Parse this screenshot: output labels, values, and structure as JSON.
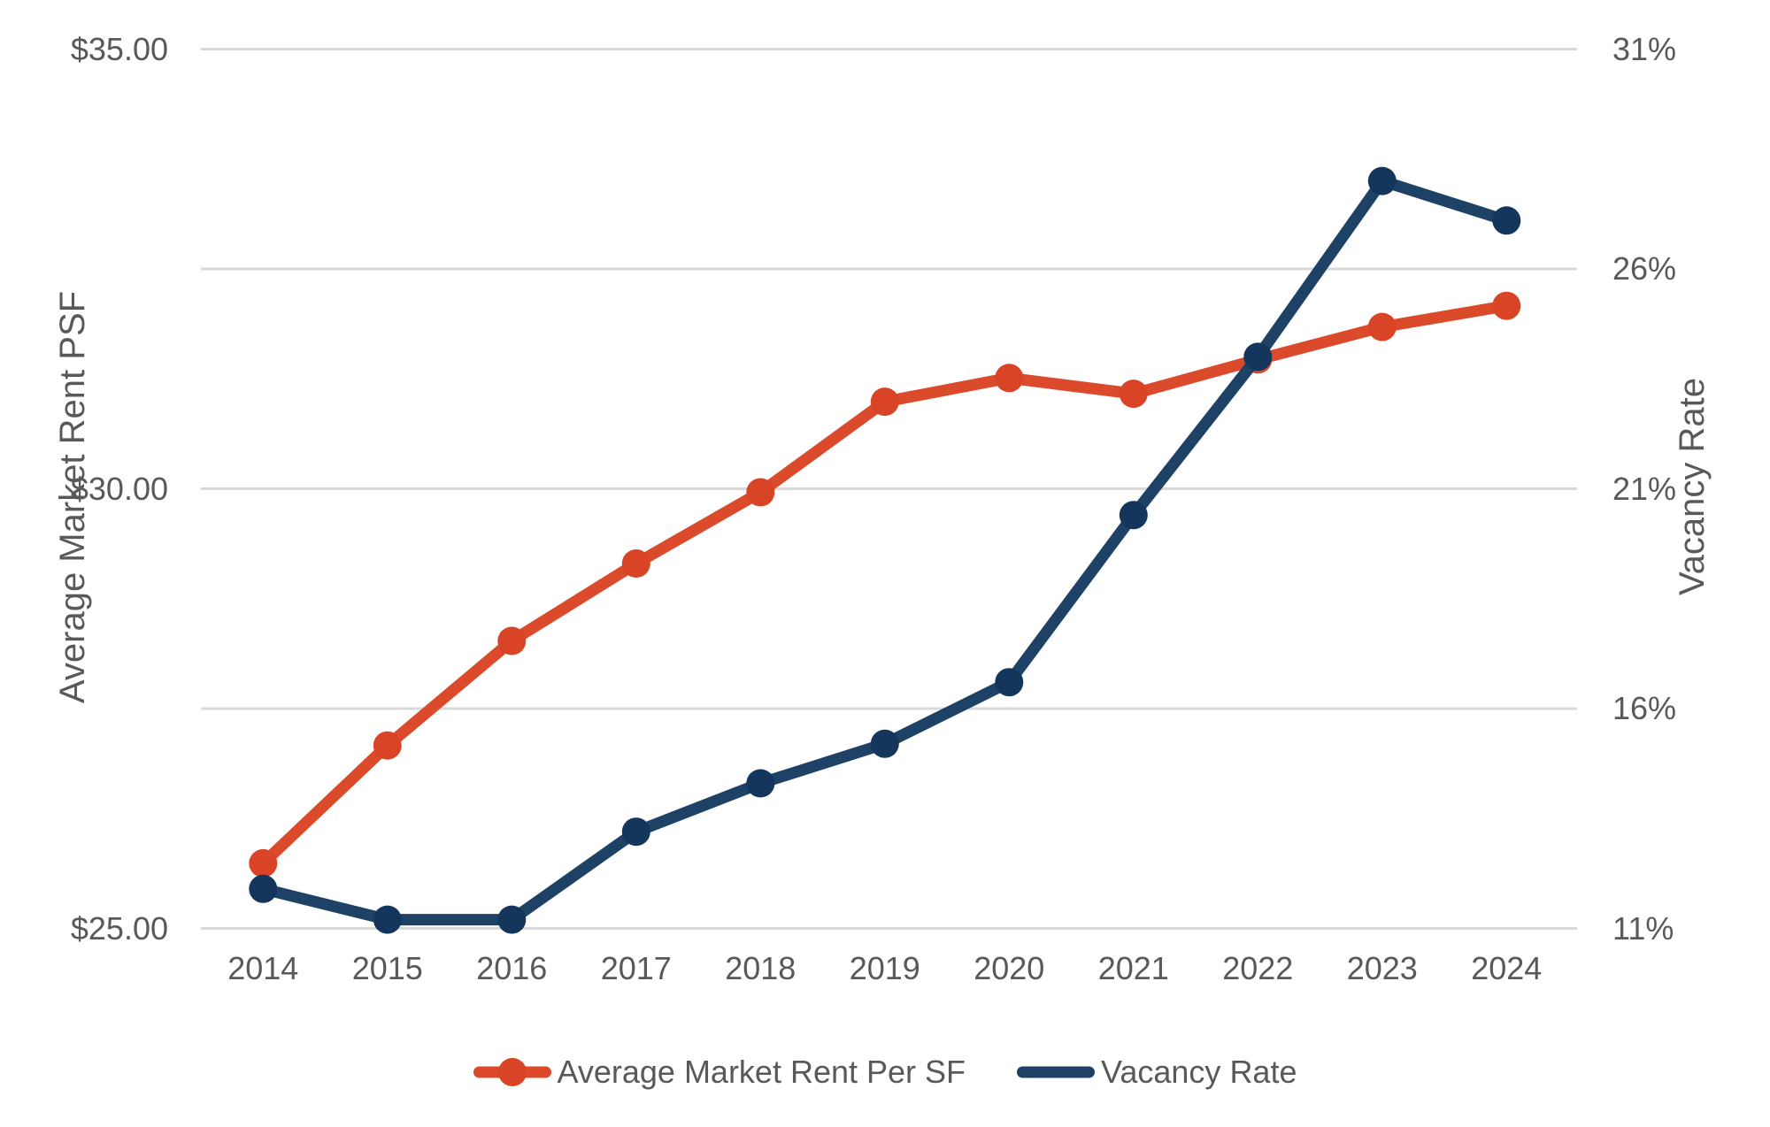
{
  "chart_data": {
    "type": "line",
    "title": "",
    "x": [
      "2014",
      "2015",
      "2016",
      "2017",
      "2018",
      "2019",
      "2020",
      "2021",
      "2022",
      "2023",
      "2024"
    ],
    "series": [
      {
        "name": "Average Market Rent Per SF",
        "axis": "left",
        "color": "#DC4A2C",
        "marker_color": "#D84425",
        "marker": "circle",
        "values": [
          25.74,
          27.08,
          28.27,
          29.15,
          29.96,
          30.99,
          31.26,
          31.08,
          31.47,
          31.84,
          32.08
        ]
      },
      {
        "name": "Vacancy Rate",
        "axis": "right",
        "color": "#1D4266",
        "marker_color": "#15365C",
        "marker": "circle",
        "values": [
          11.9,
          11.2,
          11.2,
          13.2,
          14.3,
          15.2,
          16.6,
          20.4,
          24.0,
          28.0,
          27.1
        ]
      }
    ],
    "y_left": {
      "title": "Average Market Rent PSF",
      "min": 25,
      "max": 35,
      "ticks": [
        {
          "value": 25,
          "label": "$25.00"
        },
        {
          "value": 30,
          "label": "$30.00"
        },
        {
          "value": 35,
          "label": "$35.00"
        }
      ]
    },
    "y_right": {
      "title": "Vacancy Rate",
      "min": 11,
      "max": 31,
      "ticks": [
        {
          "value": 11,
          "label": "11%"
        },
        {
          "value": 16,
          "label": "16%"
        },
        {
          "value": 21,
          "label": "21%"
        },
        {
          "value": 26,
          "label": "26%"
        },
        {
          "value": 31,
          "label": "31%"
        }
      ]
    },
    "grid": "horizontal",
    "legend_position": "bottom",
    "colors": {
      "grid": "#D9D9D9",
      "axis_text": "#595959",
      "background": "#FFFFFF"
    }
  }
}
